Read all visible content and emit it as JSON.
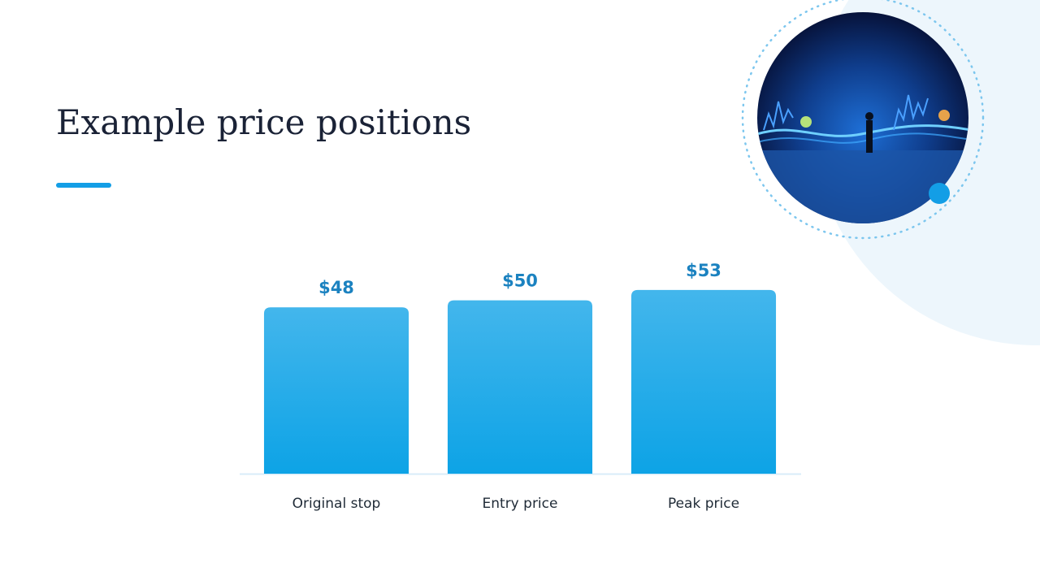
{
  "chart_data": {
    "type": "bar",
    "title": "Example price positions",
    "categories": [
      "Original stop",
      "Entry price",
      "Peak price"
    ],
    "values": [
      48,
      50,
      53
    ],
    "value_labels": [
      "$48",
      "$50",
      "$53"
    ],
    "color": "#1ea6e6",
    "ylim": [
      0,
      60
    ]
  }
}
